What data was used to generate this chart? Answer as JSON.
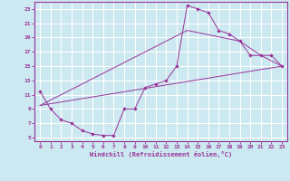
{
  "xlabel": "Windchill (Refroidissement éolien,°C)",
  "bg_color": "#cce8f0",
  "grid_color": "#ffffff",
  "line_color": "#993399",
  "xlim": [
    -0.5,
    23.5
  ],
  "ylim": [
    4.5,
    24.0
  ],
  "xticks": [
    0,
    1,
    2,
    3,
    4,
    5,
    6,
    7,
    8,
    9,
    10,
    11,
    12,
    13,
    14,
    15,
    16,
    17,
    18,
    19,
    20,
    21,
    22,
    23
  ],
  "yticks": [
    5,
    7,
    9,
    11,
    13,
    15,
    17,
    19,
    21,
    23
  ],
  "curve1_x": [
    0,
    1,
    2,
    3,
    4,
    5,
    6,
    7,
    8,
    9,
    10,
    11,
    12,
    13,
    14,
    15,
    16,
    17,
    18,
    19,
    20,
    21,
    22,
    23
  ],
  "curve1_y": [
    11.5,
    9.0,
    7.5,
    7.0,
    6.0,
    5.5,
    5.3,
    5.3,
    9.0,
    9.0,
    12.0,
    12.5,
    13.0,
    15.0,
    23.5,
    23.0,
    22.5,
    20.0,
    19.5,
    18.5,
    16.5,
    16.5,
    16.5,
    15.0
  ],
  "curve2_x": [
    0,
    23
  ],
  "curve2_y": [
    9.5,
    15.0
  ],
  "curve3_x": [
    0,
    14,
    19,
    21,
    23
  ],
  "curve3_y": [
    9.5,
    20.0,
    18.5,
    16.5,
    15.0
  ]
}
